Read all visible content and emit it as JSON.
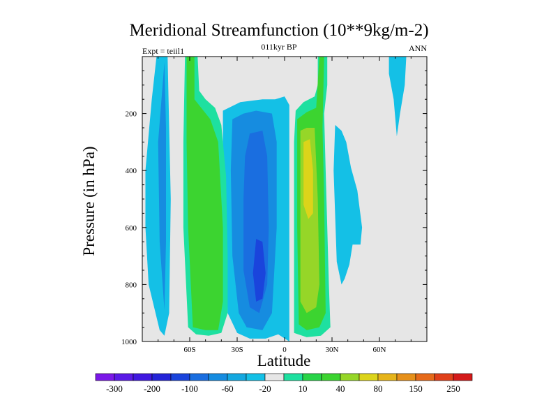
{
  "chart_data": {
    "type": "heatmap",
    "title": "Meridional Streamfunction (10**9kg/m-2)",
    "subtitle_left": "Expt = teiil1",
    "subtitle_center": "011kyr BP",
    "subtitle_right": "ANN",
    "xlabel": "Latitude",
    "ylabel": "Pressure (in hPa)",
    "xlim": [
      -90,
      90
    ],
    "ylim": [
      1000,
      0
    ],
    "x_ticks": [
      {
        "value": -60,
        "label": "60S"
      },
      {
        "value": -30,
        "label": "30S"
      },
      {
        "value": 0,
        "label": "0"
      },
      {
        "value": 30,
        "label": "30N"
      },
      {
        "value": 60,
        "label": "60N"
      }
    ],
    "y_ticks": [
      {
        "value": 200,
        "label": "200"
      },
      {
        "value": 400,
        "label": "400"
      },
      {
        "value": 600,
        "label": "600"
      },
      {
        "value": 800,
        "label": "800"
      },
      {
        "value": 1000,
        "label": "1000"
      }
    ],
    "colorbar": {
      "colors": [
        "#7b18e8",
        "#5a1ae6",
        "#4018e0",
        "#2424d8",
        "#1a44dc",
        "#1a6ee0",
        "#168ce0",
        "#14a8e0",
        "#14c0e6",
        "#e6e6e6",
        "#1ee0a0",
        "#28d448",
        "#3cd430",
        "#96d628",
        "#dcd41a",
        "#e6b41a",
        "#e6901a",
        "#e66a1a",
        "#e0401a",
        "#d41a1a"
      ],
      "labels": [
        "-300",
        "-200",
        "-100",
        "-60",
        "-20",
        "10",
        "40",
        "80",
        "150",
        "250"
      ]
    },
    "contours": [
      {
        "level": -20,
        "regions": [
          {
            "points": [
              [
                -81,
                0
              ],
              [
                -74,
                0
              ],
              [
                -72,
                500
              ],
              [
                -73,
                900
              ],
              [
                -76,
                980
              ],
              [
                -79,
                960
              ],
              [
                -86,
                800
              ],
              [
                -88,
                600
              ],
              [
                -88,
                400
              ],
              [
                -84,
                150
              ]
            ]
          },
          {
            "points": [
              [
                -39,
                190
              ],
              [
                -28,
                160
              ],
              [
                -14,
                150
              ],
              [
                -6,
                150
              ],
              [
                0,
                140
              ],
              [
                3,
                170
              ],
              [
                3,
                1000
              ],
              [
                -4,
                975
              ],
              [
                -12,
                990
              ],
              [
                -22,
                990
              ],
              [
                -30,
                970
              ],
              [
                -36,
                900
              ],
              [
                -38,
                600
              ],
              [
                -39,
                300
              ]
            ]
          },
          {
            "points": [
              [
                32,
                240
              ],
              [
                36,
                260
              ],
              [
                39,
                300
              ],
              [
                42,
                390
              ],
              [
                46,
                470
              ],
              [
                49,
                600
              ],
              [
                48,
                660
              ],
              [
                43,
                660
              ],
              [
                41,
                730
              ],
              [
                38,
                780
              ],
              [
                36,
                800
              ],
              [
                33,
                720
              ],
              [
                31,
                400
              ]
            ]
          },
          {
            "points": [
              [
                66,
                0
              ],
              [
                77,
                0
              ],
              [
                76,
                100
              ],
              [
                73,
                200
              ],
              [
                71,
                280
              ],
              [
                69,
                150
              ],
              [
                66,
                60
              ]
            ]
          }
        ]
      },
      {
        "level": -60,
        "regions": [
          {
            "points": [
              [
                -76,
                20
              ],
              [
                -80,
                300
              ],
              [
                -79,
                650
              ],
              [
                -76,
                890
              ],
              [
                -75,
                650
              ],
              [
                -75,
                250
              ]
            ]
          },
          {
            "points": [
              [
                -33,
                220
              ],
              [
                -26,
                200
              ],
              [
                -18,
                190
              ],
              [
                -8,
                200
              ],
              [
                -5,
                300
              ],
              [
                -5,
                600
              ],
              [
                -8,
                900
              ],
              [
                -14,
                960
              ],
              [
                -24,
                950
              ],
              [
                -29,
                900
              ],
              [
                -33,
                700
              ],
              [
                -34,
                400
              ]
            ]
          }
        ]
      },
      {
        "level": -100,
        "regions": [
          {
            "points": [
              [
                -22,
                270
              ],
              [
                -14,
                260
              ],
              [
                -11,
                350
              ],
              [
                -10,
                600
              ],
              [
                -11,
                800
              ],
              [
                -16,
                900
              ],
              [
                -22,
                880
              ],
              [
                -26,
                750
              ],
              [
                -26,
                500
              ],
              [
                -25,
                350
              ]
            ]
          }
        ]
      },
      {
        "level": -200,
        "regions": [
          {
            "points": [
              [
                -18,
                640
              ],
              [
                -14,
                650
              ],
              [
                -12,
                760
              ],
              [
                -14,
                850
              ],
              [
                -18,
                860
              ],
              [
                -20,
                760
              ]
            ]
          }
        ]
      },
      {
        "level": 10,
        "regions": [
          {
            "points": [
              [
                -63,
                0
              ],
              [
                -55,
                0
              ],
              [
                -54,
                120
              ],
              [
                -50,
                150
              ],
              [
                -44,
                180
              ],
              [
                -40,
                240
              ],
              [
                -37,
                420
              ],
              [
                -36,
                700
              ],
              [
                -36,
                900
              ],
              [
                -40,
                970
              ],
              [
                -48,
                980
              ],
              [
                -56,
                975
              ],
              [
                -61,
                950
              ],
              [
                -64,
                600
              ],
              [
                -64,
                300
              ]
            ]
          },
          {
            "points": [
              [
                7,
                190
              ],
              [
                12,
                160
              ],
              [
                19,
                140
              ],
              [
                21,
                100
              ],
              [
                21,
                0
              ],
              [
                27,
                0
              ],
              [
                27,
                100
              ],
              [
                25,
                200
              ],
              [
                26,
                400
              ],
              [
                28,
                800
              ],
              [
                29,
                950
              ],
              [
                23,
                980
              ],
              [
                14,
                985
              ],
              [
                6,
                970
              ],
              [
                6,
                600
              ],
              [
                6,
                300
              ]
            ]
          }
        ]
      },
      {
        "level": 40,
        "regions": [
          {
            "points": [
              [
                -62,
                0
              ],
              [
                -57,
                0
              ],
              [
                -57,
                150
              ],
              [
                -47,
                220
              ],
              [
                -42,
                300
              ],
              [
                -39,
                600
              ],
              [
                -39,
                860
              ],
              [
                -42,
                960
              ],
              [
                -50,
                960
              ],
              [
                -58,
                950
              ],
              [
                -61,
                600
              ],
              [
                -62,
                300
              ]
            ]
          },
          {
            "points": [
              [
                8,
                220
              ],
              [
                14,
                195
              ],
              [
                20,
                180
              ],
              [
                22,
                0
              ],
              [
                25,
                0
              ],
              [
                24,
                250
              ],
              [
                25,
                500
              ],
              [
                26,
                900
              ],
              [
                22,
                950
              ],
              [
                14,
                960
              ],
              [
                9,
                940
              ],
              [
                8,
                600
              ]
            ]
          }
        ]
      },
      {
        "level": 80,
        "regions": [
          {
            "points": [
              [
                10,
                260
              ],
              [
                14,
                250
              ],
              [
                19,
                250
              ],
              [
                21,
                500
              ],
              [
                22,
                800
              ],
              [
                20,
                880
              ],
              [
                14,
                900
              ],
              [
                10,
                860
              ],
              [
                10,
                500
              ]
            ]
          }
        ]
      },
      {
        "level": 150,
        "regions": [
          {
            "points": [
              [
                12,
                300
              ],
              [
                16,
                290
              ],
              [
                18,
                400
              ],
              [
                18,
                550
              ],
              [
                15,
                570
              ],
              [
                12,
                520
              ],
              [
                12,
                400
              ]
            ]
          }
        ]
      }
    ]
  }
}
